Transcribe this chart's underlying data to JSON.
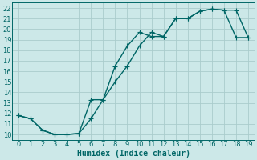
{
  "xlabel": "Humidex (Indice chaleur)",
  "background_color": "#cce8e8",
  "grid_color": "#aacccc",
  "line_color": "#006666",
  "xlim": [
    -0.5,
    19.5
  ],
  "ylim": [
    9.5,
    22.5
  ],
  "yticks": [
    10,
    11,
    12,
    13,
    14,
    15,
    16,
    17,
    18,
    19,
    20,
    21,
    22
  ],
  "xticks": [
    0,
    1,
    2,
    3,
    4,
    5,
    6,
    7,
    8,
    9,
    10,
    11,
    12,
    13,
    14,
    15,
    16,
    17,
    18,
    19
  ],
  "upper_x": [
    0,
    1,
    2,
    3,
    4,
    5,
    6,
    7,
    8,
    9,
    10,
    11,
    12,
    13,
    14,
    15,
    16,
    17,
    18,
    19
  ],
  "upper_y": [
    11.8,
    11.5,
    10.4,
    10.0,
    10.0,
    10.1,
    13.3,
    13.3,
    16.5,
    18.4,
    19.7,
    19.3,
    19.3,
    21.0,
    21.0,
    21.7,
    21.9,
    21.8,
    21.8,
    19.2
  ],
  "lower_x": [
    0,
    1,
    2,
    3,
    4,
    5,
    6,
    7,
    8,
    9,
    10,
    11,
    12,
    13,
    14,
    15,
    16,
    17,
    18,
    19
  ],
  "lower_y": [
    11.8,
    11.5,
    10.4,
    10.0,
    10.0,
    10.1,
    11.5,
    13.3,
    15.0,
    16.5,
    18.4,
    19.7,
    19.3,
    21.0,
    21.0,
    21.7,
    21.9,
    21.8,
    19.2,
    19.2
  ],
  "marker_size": 2.5,
  "line_width": 1.0,
  "font_size_label": 7,
  "font_size_tick": 6
}
